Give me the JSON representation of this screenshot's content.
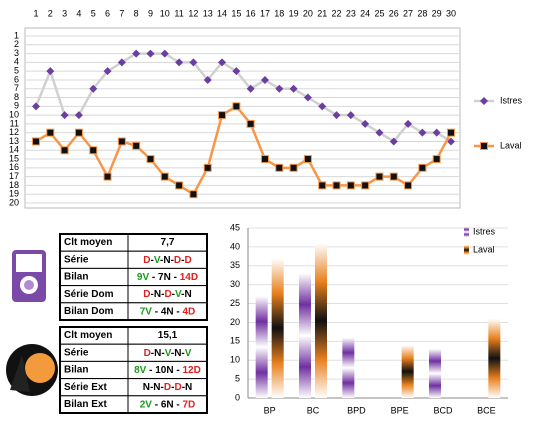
{
  "chart_data": [
    {
      "type": "line",
      "xlim": [
        1,
        30
      ],
      "xticks": [
        1,
        2,
        3,
        4,
        5,
        6,
        7,
        8,
        9,
        10,
        11,
        12,
        13,
        14,
        15,
        16,
        17,
        18,
        19,
        20,
        21,
        22,
        23,
        24,
        25,
        26,
        27,
        28,
        29,
        30
      ],
      "ylim": [
        1,
        20
      ],
      "yticks": [
        1,
        2,
        3,
        4,
        5,
        6,
        7,
        8,
        9,
        10,
        11,
        12,
        13,
        14,
        15,
        16,
        17,
        18,
        19,
        20
      ],
      "y_inverted": true,
      "grid": true,
      "x": [
        1,
        2,
        3,
        4,
        5,
        6,
        7,
        8,
        9,
        10,
        11,
        12,
        13,
        14,
        15,
        16,
        17,
        18,
        19,
        20,
        21,
        22,
        23,
        24,
        25,
        26,
        27,
        28,
        29,
        30
      ],
      "series": [
        {
          "name": "Istres",
          "color": "#d0d0d0",
          "marker_color": "#6b3fa0",
          "marker": "diamond",
          "values": [
            9,
            5,
            10,
            10,
            7,
            5,
            4,
            3,
            3,
            3,
            4,
            4,
            6,
            4,
            5,
            7,
            6,
            7,
            7,
            8,
            9,
            10,
            10,
            11,
            12,
            13,
            11,
            12,
            12,
            13
          ]
        },
        {
          "name": "Laval",
          "color": "#f79646",
          "marker_color": "#111111",
          "marker": "square",
          "values": [
            13,
            12,
            14,
            12,
            14,
            17,
            13,
            13.5,
            15,
            17,
            18,
            19,
            16,
            10,
            9,
            11,
            15,
            16,
            16,
            15,
            18,
            18,
            18,
            18,
            17,
            17,
            18,
            16,
            15,
            12
          ]
        }
      ]
    },
    {
      "type": "bar",
      "categories": [
        "BP",
        "BC",
        "BPD",
        "BPE",
        "BCD",
        "BCE"
      ],
      "ylim": [
        0,
        45
      ],
      "yticks": [
        0,
        5,
        10,
        15,
        20,
        25,
        30,
        35,
        40,
        45
      ],
      "grid": true,
      "series": [
        {
          "name": "Istres",
          "color": "#7030a0",
          "values": [
            27,
            33,
            16,
            0,
            13,
            0
          ]
        },
        {
          "name": "Laval",
          "color": "#e8801e",
          "values": [
            37,
            41,
            0,
            14,
            0,
            21
          ]
        }
      ]
    }
  ],
  "tables": [
    {
      "rows": [
        [
          "Clt moyen",
          "7,7"
        ],
        [
          "Série",
          "D-V-N-D-D"
        ],
        [
          "Bilan",
          "9V - 7N - 14D"
        ],
        [
          "Série Dom",
          "D-N-D-V-N"
        ],
        [
          "Bilan Dom",
          "7V - 4N - 4D"
        ]
      ]
    },
    {
      "rows": [
        [
          "Clt moyen",
          "15,1"
        ],
        [
          "Série",
          "D-N-V-N-V"
        ],
        [
          "Bilan",
          "8V - 10N - 12D"
        ],
        [
          "Série Ext",
          "N-N-D-D-N"
        ],
        [
          "Bilan Ext",
          "2V - 6N - 7D"
        ]
      ]
    }
  ]
}
